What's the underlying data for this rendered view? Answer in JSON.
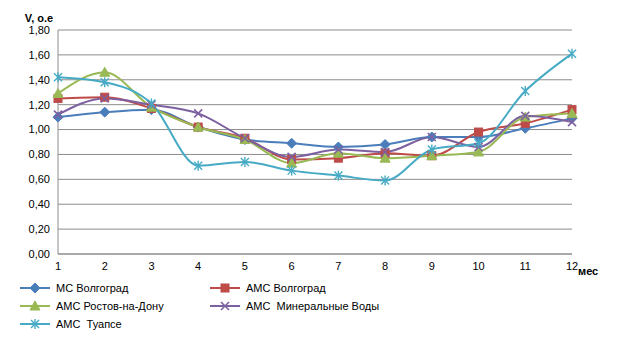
{
  "chart_data": {
    "type": "line",
    "x_label": "мес",
    "y_label": "V, о.е",
    "categories": [
      "1",
      "2",
      "3",
      "4",
      "5",
      "6",
      "7",
      "8",
      "9",
      "10",
      "11",
      "12"
    ],
    "series": [
      {
        "name": "МС Волгоград",
        "color": "#4a7ebb",
        "marker": "diamond",
        "values": [
          1.1,
          1.14,
          1.16,
          1.02,
          0.92,
          0.89,
          0.86,
          0.88,
          0.94,
          0.94,
          1.01,
          1.09
        ]
      },
      {
        "name": "АМС Волгоград",
        "color": "#be4b48",
        "marker": "square",
        "values": [
          1.25,
          1.26,
          1.17,
          1.02,
          0.93,
          0.76,
          0.77,
          0.81,
          0.79,
          0.98,
          1.05,
          1.16
        ]
      },
      {
        "name": "АМС Ростов-на-Дону",
        "color": "#98b954",
        "marker": "triangle",
        "values": [
          1.29,
          1.46,
          1.18,
          1.02,
          0.92,
          0.73,
          0.81,
          0.77,
          0.79,
          0.82,
          1.1,
          1.13
        ]
      },
      {
        "name": "АМС  Минеральные Воды",
        "color": "#7d60a0",
        "marker": "x",
        "values": [
          1.12,
          1.25,
          1.2,
          1.13,
          0.93,
          0.78,
          0.84,
          0.82,
          0.94,
          0.86,
          1.11,
          1.06
        ]
      },
      {
        "name": "АМС  Туапсе",
        "color": "#46aac5",
        "marker": "star",
        "values": [
          1.42,
          1.38,
          1.21,
          0.71,
          0.74,
          0.67,
          0.63,
          0.59,
          0.84,
          0.89,
          1.31,
          1.61
        ]
      }
    ],
    "ylim": [
      0,
      1.8
    ],
    "yticks": [
      {
        "value": 0,
        "label": "0,00"
      },
      {
        "value": 0.2,
        "label": "0,20"
      },
      {
        "value": 0.4,
        "label": "0,40"
      },
      {
        "value": 0.6,
        "label": "0,60"
      },
      {
        "value": 0.8,
        "label": "0,80"
      },
      {
        "value": 1.0,
        "label": "1,00"
      },
      {
        "value": 1.2,
        "label": "1,20"
      },
      {
        "value": 1.4,
        "label": "1,40"
      },
      {
        "value": 1.6,
        "label": "1,60"
      },
      {
        "value": 1.8,
        "label": "1,80"
      }
    ],
    "grid": true,
    "legend": "bottom"
  }
}
